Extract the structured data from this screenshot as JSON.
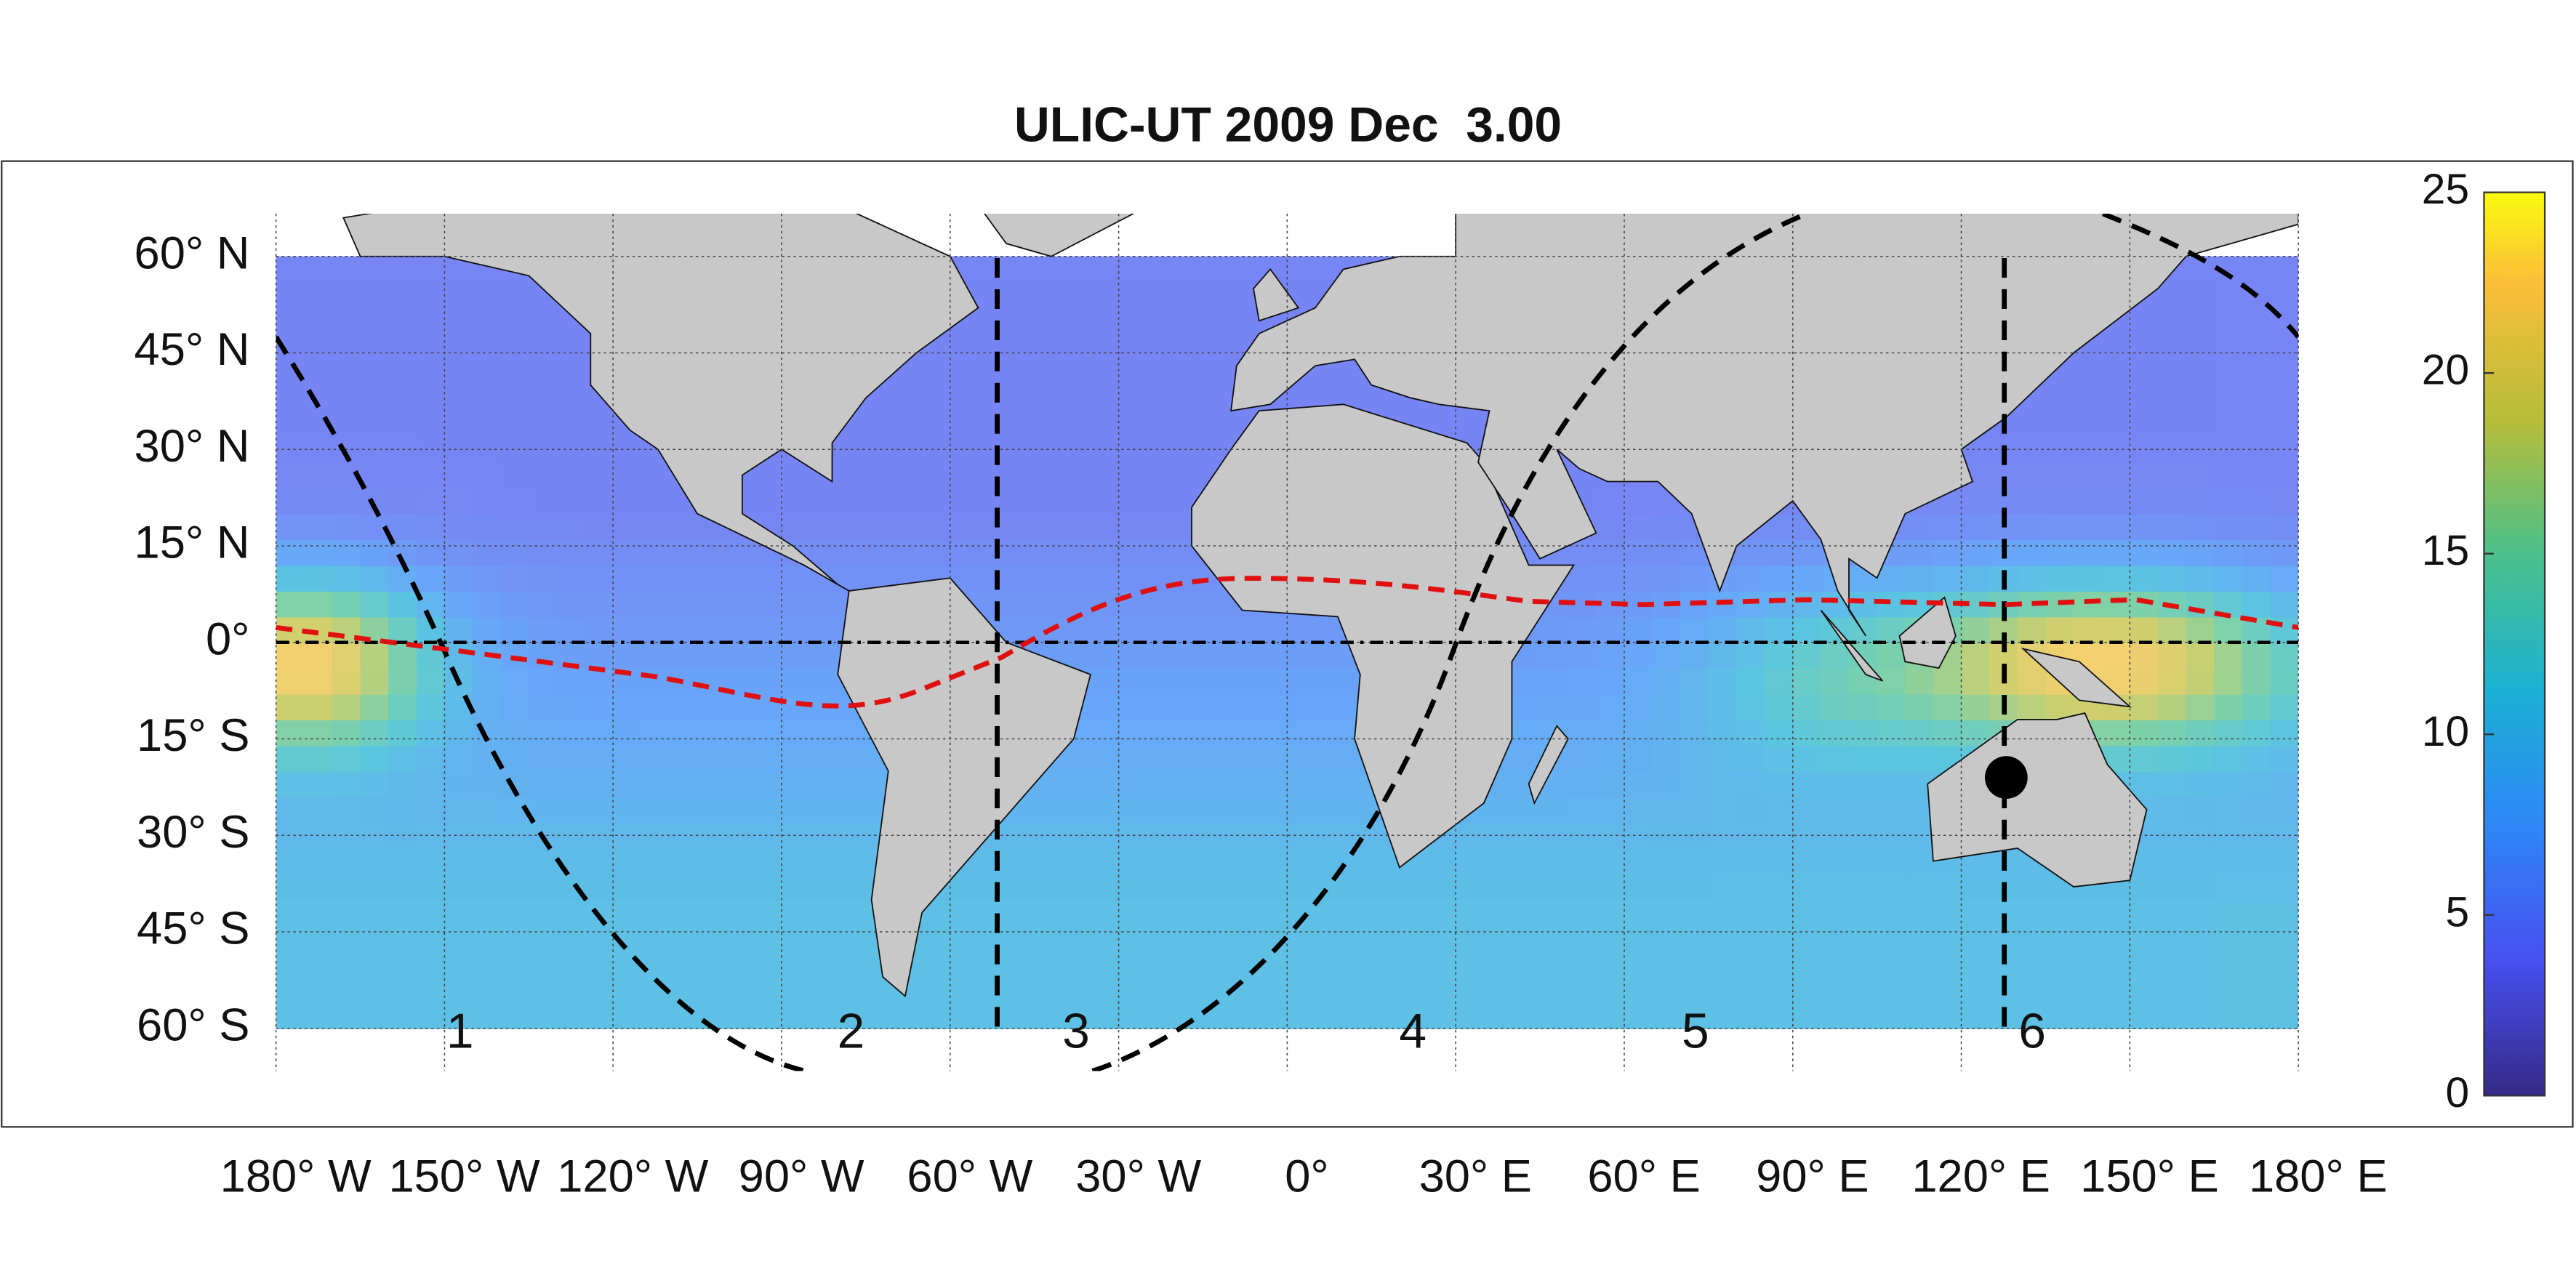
{
  "title": "ULIC-UT 2009 Dec  3.00",
  "map": {
    "lat_ticks": [
      {
        "value": 60,
        "label": "60° N"
      },
      {
        "value": 45,
        "label": "45° N"
      },
      {
        "value": 30,
        "label": "30° N"
      },
      {
        "value": 15,
        "label": "15° N"
      },
      {
        "value": 0,
        "label": "0°"
      },
      {
        "value": -15,
        "label": "15° S"
      },
      {
        "value": -30,
        "label": "30° S"
      },
      {
        "value": -45,
        "label": "45° S"
      },
      {
        "value": -60,
        "label": "60° S"
      }
    ],
    "lon_ticks": [
      {
        "value": -180,
        "label": "180° W"
      },
      {
        "value": -150,
        "label": "150° W"
      },
      {
        "value": -120,
        "label": "120° W"
      },
      {
        "value": -90,
        "label": "90° W"
      },
      {
        "value": -60,
        "label": "60° W"
      },
      {
        "value": -30,
        "label": "30° W"
      },
      {
        "value": 0,
        "label": "0°"
      },
      {
        "value": 30,
        "label": "30° E"
      },
      {
        "value": 60,
        "label": "60° E"
      },
      {
        "value": 90,
        "label": "90° E"
      },
      {
        "value": 120,
        "label": "120° E"
      },
      {
        "value": 150,
        "label": "150° E"
      },
      {
        "value": 180,
        "label": "180° E"
      }
    ],
    "region_labels": [
      "1",
      "2",
      "3",
      "4",
      "5",
      "6"
    ],
    "marker": {
      "lon": 128,
      "lat": -21
    }
  },
  "colorbar": {
    "lim": [
      0,
      25
    ],
    "ticks": [
      0,
      5,
      10,
      15,
      20,
      25
    ]
  }
}
